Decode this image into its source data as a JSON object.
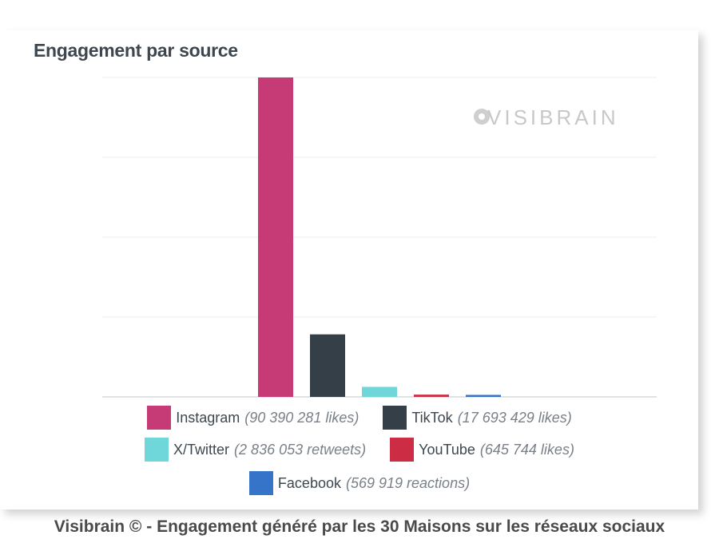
{
  "chart_data": {
    "type": "bar",
    "title": "Engagement par source",
    "categories": [
      "Instagram",
      "TikTok",
      "X/Twitter",
      "YouTube",
      "Facebook"
    ],
    "values": [
      90390281,
      17693429,
      2836053,
      645744,
      569919
    ],
    "units": [
      "likes",
      "likes",
      "retweets",
      "likes",
      "reactions"
    ],
    "value_labels": [
      "(90 390 281 likes)",
      "(17 693 429 likes)",
      "(2 836 053 retweets)",
      "(645 744 likes)",
      "(569 919 reactions)"
    ],
    "colors": [
      "#c63a76",
      "#353f47",
      "#6fd6d9",
      "#cc2d45",
      "#3574c8"
    ],
    "ylim": [
      0,
      90390281
    ],
    "grid": true,
    "legend": "bottom",
    "watermark": "VISIBRAIN"
  },
  "caption": "Visibrain © - Engagement généré par les 30 Maisons sur les réseaux sociaux"
}
